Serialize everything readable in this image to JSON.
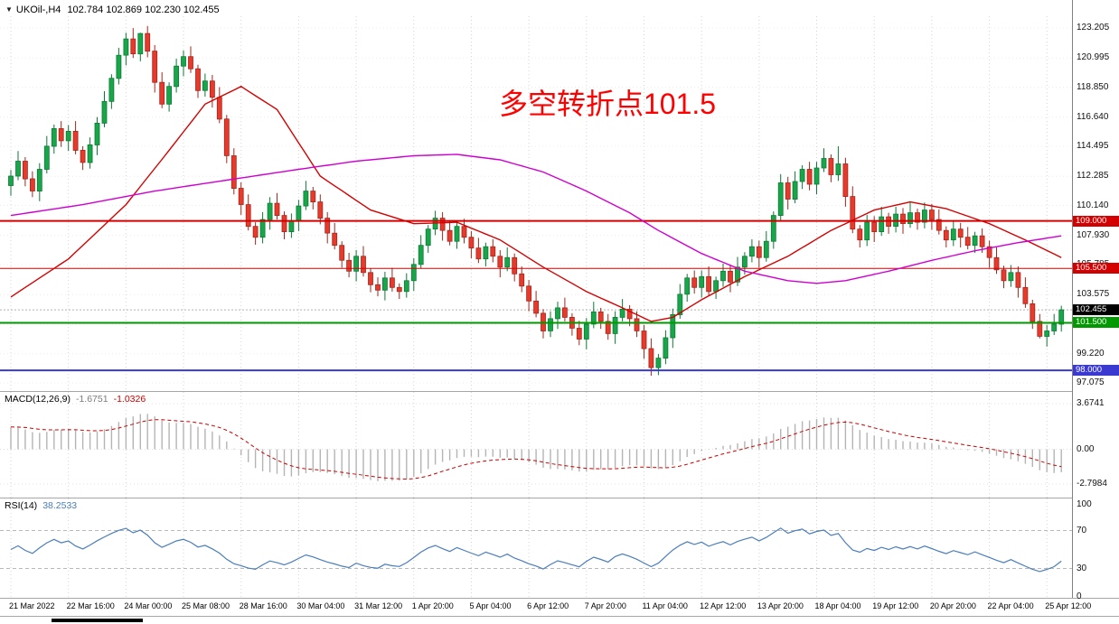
{
  "header": {
    "marker": "▼",
    "symbol_period": "UKOil-,H4",
    "ohlc": "102.784 102.869 102.230 102.455"
  },
  "annotation": {
    "text": "多空转折点101.5",
    "color": "#ff0000"
  },
  "macd_panel": {
    "title": "MACD(12,26,9)",
    "value1": "-1.6751",
    "value2": "-1.0326",
    "axis_ticks": [
      "3.6741",
      "0.00",
      "-2.7984"
    ]
  },
  "rsi_panel": {
    "title": "RSI(14)",
    "value": "38.2533",
    "axis_ticks": [
      "100",
      "70",
      "30",
      "0"
    ]
  },
  "price_axis": {
    "gridlines": [
      "123.205",
      "120.995",
      "118.850",
      "116.640",
      "114.495",
      "112.285",
      "110.140",
      "107.930",
      "105.785",
      "103.575",
      "101.430",
      "99.220",
      "97.075"
    ]
  },
  "colors": {
    "up": "#17a74a",
    "up_border": "#0c7a33",
    "down": "#e8392b",
    "down_border": "#a2271c",
    "ma_fast": "#d40000",
    "ma_slow": "#cf00cf",
    "hline_red": "#d40000",
    "hline_green": "#009a00",
    "hline_blue": "#3a3ad0",
    "hist": "#b4b4b4",
    "signal": "#cc0000",
    "rsi": "#4a7ebb",
    "grid": "#d4d4d4",
    "current_box": "#000000",
    "annotation": "#ff0000"
  },
  "chart_data": {
    "type": "candlestick",
    "title": "UKOil-,H4",
    "ylim": [
      97.075,
      123.205
    ],
    "candles_per_label": 8,
    "x_labels": [
      "21 Mar 2022",
      "22 Mar 16:00",
      "24 Mar 00:00",
      "25 Mar 08:00",
      "28 Mar 16:00",
      "30 Mar 04:00",
      "31 Mar 12:00",
      "1 Apr 20:00",
      "5 Apr 04:00",
      "6 Apr 12:00",
      "7 Apr 20:00",
      "11 Apr 04:00",
      "12 Apr 12:00",
      "13 Apr 20:00",
      "18 Apr 04:00",
      "19 Apr 12:00",
      "20 Apr 20:00",
      "22 Apr 04:00",
      "25 Apr 12:00"
    ],
    "first_open": 111.6,
    "closes": [
      112.3,
      113.4,
      112.1,
      111.2,
      112.8,
      114.5,
      115.8,
      114.9,
      115.6,
      114.2,
      113.3,
      114.6,
      116.2,
      117.8,
      119.5,
      121.2,
      122.4,
      121.3,
      122.8,
      121.5,
      119.2,
      117.6,
      118.9,
      120.4,
      121.1,
      120.2,
      118.6,
      119.3,
      118.1,
      116.5,
      113.8,
      111.4,
      110.2,
      108.6,
      107.8,
      109.1,
      110.3,
      109.4,
      108.2,
      109.0,
      110.1,
      111.2,
      110.4,
      109.2,
      108.1,
      107.2,
      106.1,
      105.3,
      106.4,
      105.2,
      104.3,
      103.9,
      104.8,
      104.1,
      103.8,
      104.6,
      105.8,
      107.2,
      108.4,
      109.2,
      108.3,
      107.5,
      108.6,
      107.8,
      107.0,
      106.2,
      107.1,
      106.4,
      105.6,
      106.3,
      105.1,
      104.2,
      103.1,
      102.2,
      100.9,
      101.8,
      102.6,
      101.9,
      101.1,
      100.3,
      101.4,
      102.3,
      101.6,
      100.7,
      101.9,
      102.5,
      101.8,
      100.9,
      99.6,
      98.2,
      98.9,
      100.4,
      102.1,
      103.6,
      104.8,
      104.1,
      104.9,
      103.8,
      104.6,
      105.3,
      104.5,
      105.6,
      106.4,
      107.1,
      106.3,
      107.5,
      109.4,
      111.8,
      110.6,
      111.9,
      112.8,
      111.7,
      112.9,
      113.6,
      112.4,
      113.2,
      110.8,
      108.4,
      107.6,
      108.9,
      108.2,
      109.3,
      108.6,
      109.5,
      108.8,
      109.6,
      108.9,
      109.8,
      109.1,
      108.3,
      107.6,
      108.4,
      107.8,
      107.2,
      107.9,
      107.1,
      106.3,
      105.4,
      104.6,
      105.2,
      104.1,
      102.9,
      101.6,
      100.5,
      100.9,
      101.4,
      102.455
    ],
    "wick_pattern": [
      0.45,
      0.75,
      0.3,
      0.55
    ],
    "wick_overrides": [
      {
        "i": 17,
        "h": 123.2
      },
      {
        "i": 18,
        "h": 122.85
      },
      {
        "i": 89,
        "l": 97.6
      },
      {
        "i": 107,
        "h": 112.45
      },
      {
        "i": 115,
        "h": 114.5
      },
      {
        "i": 143,
        "l": 100.35
      }
    ],
    "hlines": [
      {
        "value": 109.0,
        "label": "109.000",
        "color_key": "hline_red",
        "width": 2
      },
      {
        "value": 105.5,
        "label": "105.500",
        "color_key": "hline_red",
        "width": 1
      },
      {
        "value": 101.5,
        "label": "101.500",
        "color_key": "hline_green",
        "width": 2
      },
      {
        "value": 98.0,
        "label": "98.000",
        "color_key": "hline_blue",
        "width": 2
      }
    ],
    "current_price": {
      "value": 102.455,
      "label": "102.455"
    },
    "overlays": [
      {
        "name": "ma-fast",
        "color_key": "ma_fast",
        "points": [
          [
            0,
            103.4
          ],
          [
            8,
            106.2
          ],
          [
            16,
            110.2
          ],
          [
            22,
            114.2
          ],
          [
            27,
            117.6
          ],
          [
            32,
            118.9
          ],
          [
            37,
            117.2
          ],
          [
            43,
            112.3
          ],
          [
            50,
            109.8
          ],
          [
            56,
            108.8
          ],
          [
            62,
            108.9
          ],
          [
            68,
            107.6
          ],
          [
            74,
            105.6
          ],
          [
            80,
            103.8
          ],
          [
            85,
            102.6
          ],
          [
            89,
            101.6
          ],
          [
            92,
            101.9
          ],
          [
            96,
            103.2
          ],
          [
            102,
            104.9
          ],
          [
            108,
            106.4
          ],
          [
            114,
            108.3
          ],
          [
            120,
            109.8
          ],
          [
            125,
            110.4
          ],
          [
            130,
            109.9
          ],
          [
            136,
            108.8
          ],
          [
            141,
            107.6
          ],
          [
            146,
            106.3
          ]
        ]
      },
      {
        "name": "ma-slow",
        "color_key": "ma_slow",
        "points": [
          [
            0,
            109.4
          ],
          [
            10,
            110.2
          ],
          [
            20,
            111.2
          ],
          [
            30,
            112.0
          ],
          [
            40,
            112.8
          ],
          [
            48,
            113.4
          ],
          [
            56,
            113.8
          ],
          [
            62,
            113.9
          ],
          [
            68,
            113.5
          ],
          [
            74,
            112.6
          ],
          [
            80,
            111.2
          ],
          [
            86,
            109.6
          ],
          [
            90,
            108.3
          ],
          [
            96,
            106.6
          ],
          [
            102,
            105.3
          ],
          [
            108,
            104.6
          ],
          [
            112,
            104.4
          ],
          [
            116,
            104.6
          ],
          [
            122,
            105.3
          ],
          [
            128,
            106.1
          ],
          [
            134,
            106.8
          ],
          [
            140,
            107.4
          ],
          [
            146,
            107.9
          ]
        ]
      }
    ],
    "indicators": {
      "macd": {
        "fast": 12,
        "slow": 26,
        "signal": 9,
        "seed_offset": 1.8,
        "current_macd": "-1.6751",
        "current_signal": "-1.0326",
        "axis_ticks": [
          3.6741,
          0.0,
          -2.7984
        ]
      },
      "rsi": {
        "period": 14,
        "seed": 0.5,
        "current": "38.2533",
        "levels": [
          70,
          30
        ],
        "axis_ticks": [
          100,
          70,
          30,
          0
        ]
      }
    }
  }
}
